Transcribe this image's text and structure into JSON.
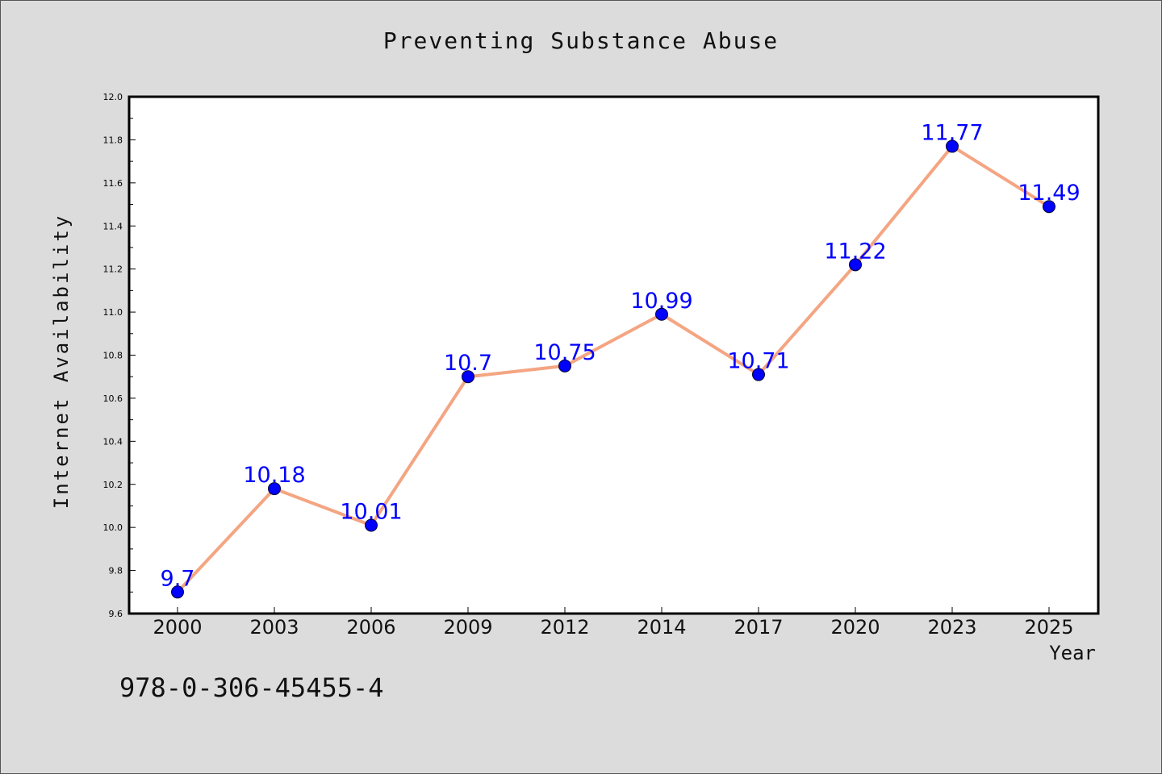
{
  "chart_data": {
    "type": "line",
    "title": "Preventing Substance Abuse",
    "xlabel": "Year",
    "ylabel": "Internet Availability",
    "categories": [
      "2000",
      "2003",
      "2006",
      "2009",
      "2012",
      "2014",
      "2017",
      "2020",
      "2023",
      "2025"
    ],
    "series": [
      {
        "values": [
          9.7,
          10.18,
          10.01,
          10.7,
          10.75,
          10.99,
          10.71,
          11.22,
          11.77,
          11.49
        ],
        "data_labels": [
          "9.7",
          "10.18",
          "10.01",
          "10.7",
          "10.75",
          "10.99",
          "10.71",
          "11.22",
          "11.77",
          "11.49"
        ]
      }
    ],
    "ylim": [
      9.6,
      12.0
    ],
    "yticks": [
      "9.6",
      "9.8",
      "10.0",
      "10.2",
      "10.4",
      "10.6",
      "10.8",
      "11.0",
      "11.2",
      "11.4",
      "11.6",
      "11.8",
      "12.0"
    ],
    "grid": false,
    "colors": {
      "line": "#f4a582",
      "marker": "#0000ff",
      "label": "#0000ff",
      "background": "#dcdcdc",
      "plot_background": "#ffffff"
    }
  },
  "annotation": "978-0-306-45455-4"
}
